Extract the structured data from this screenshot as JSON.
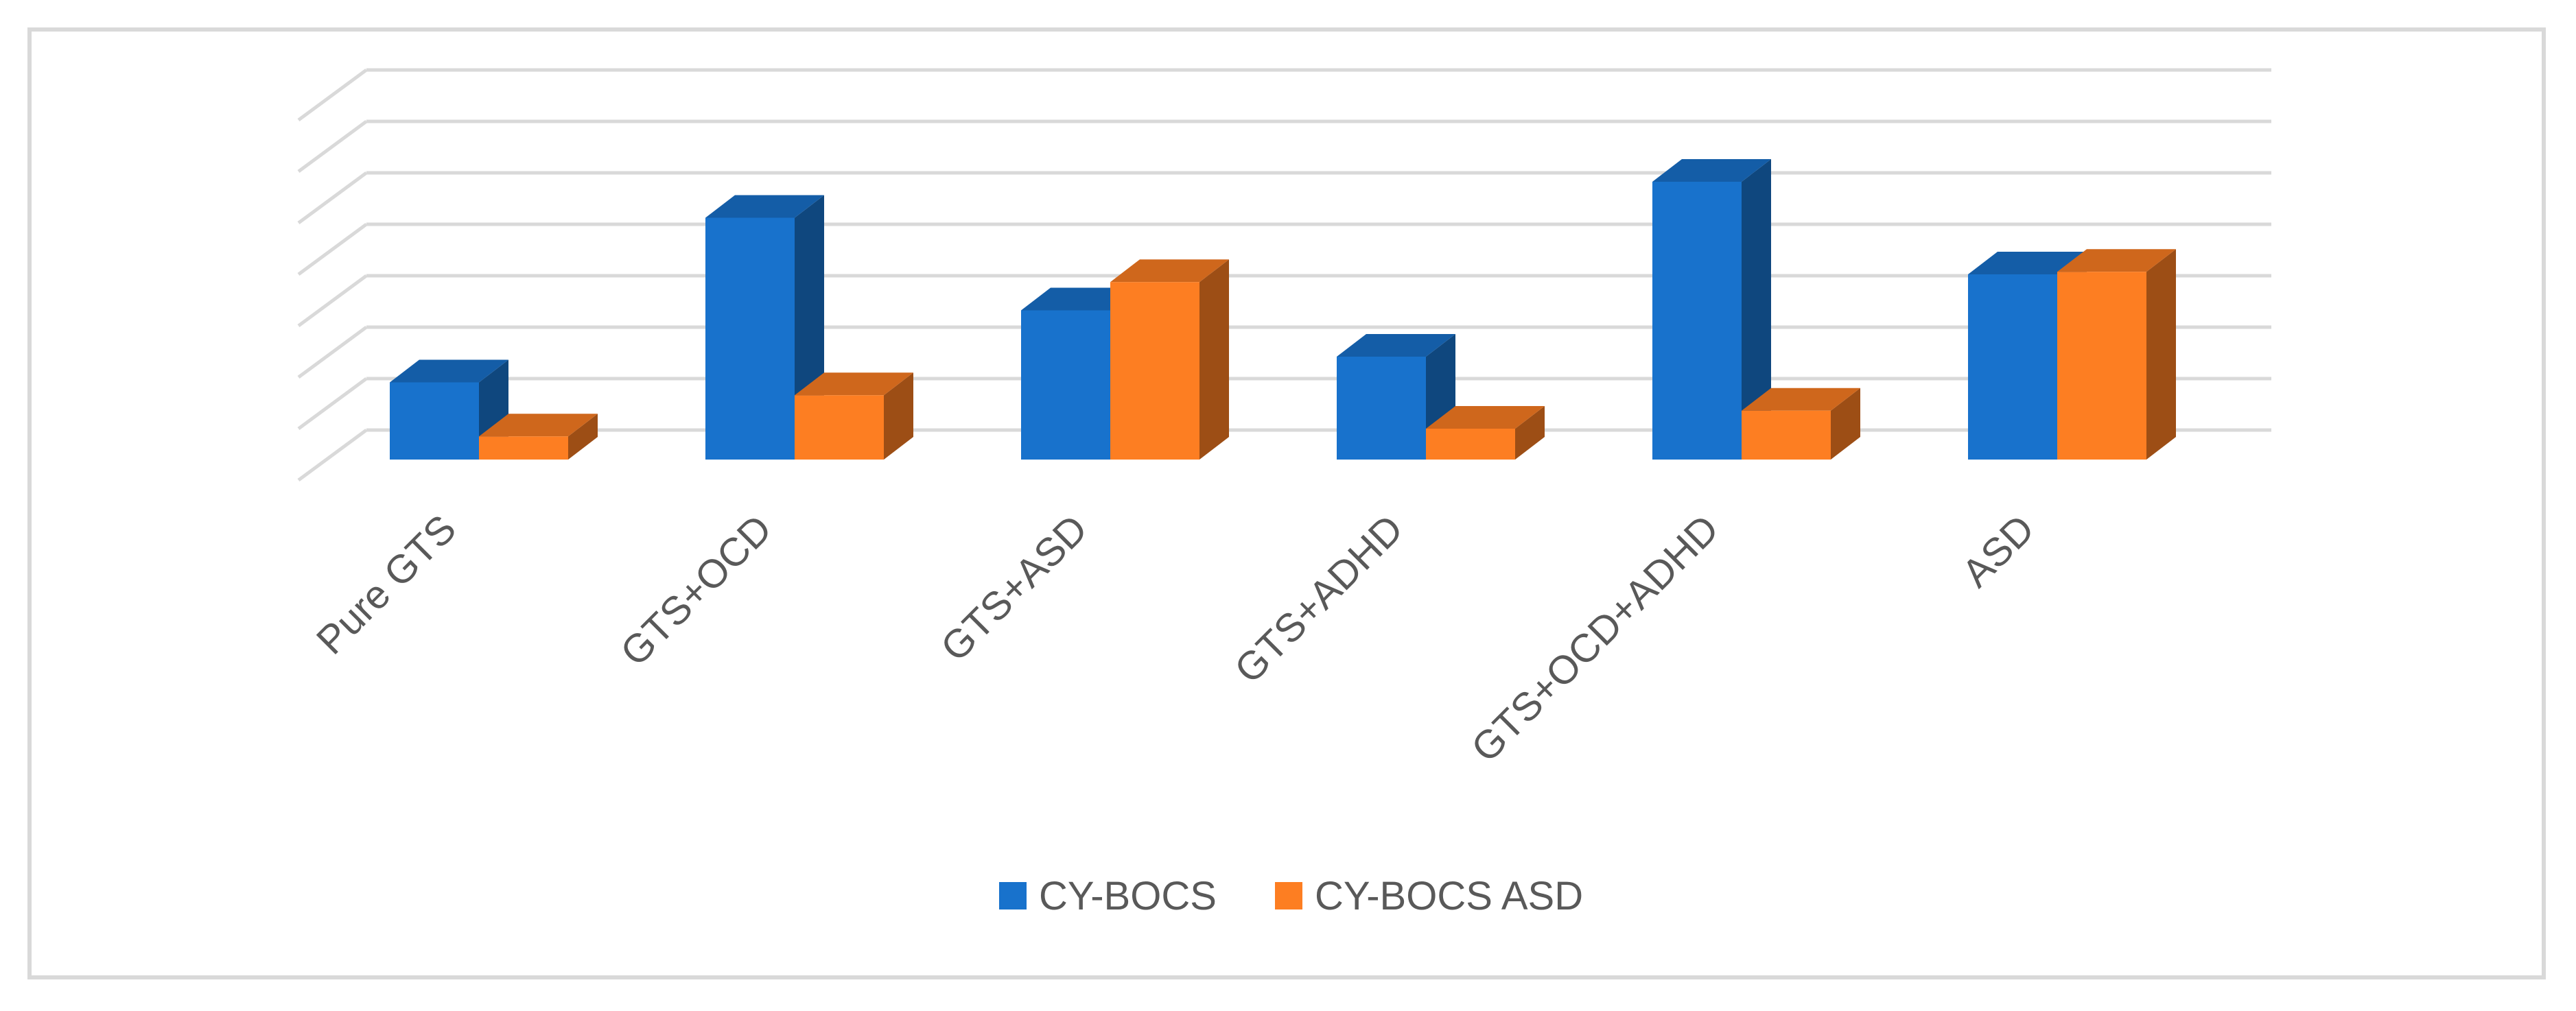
{
  "chart_data": {
    "type": "bar",
    "title": "",
    "xlabel": "",
    "ylabel": "",
    "categories": [
      "Pure GTS",
      "GTS+OCD",
      "GTS+ASD",
      "GTS+ADHD",
      "GTS+OCD+ADHD",
      "ASD"
    ],
    "ylim": [
      0,
      7
    ],
    "grid": true,
    "three_d": true,
    "legend_position": "bottom",
    "series": [
      {
        "name": "CY-BOCS",
        "color": "#1872cc",
        "values": [
          1.5,
          4.7,
          2.9,
          2.0,
          5.4,
          3.6
        ]
      },
      {
        "name": "CY-BOCS ASD",
        "color": "#fd7e22",
        "values": [
          0.45,
          1.25,
          3.45,
          0.6,
          0.95,
          3.65
        ]
      }
    ]
  }
}
